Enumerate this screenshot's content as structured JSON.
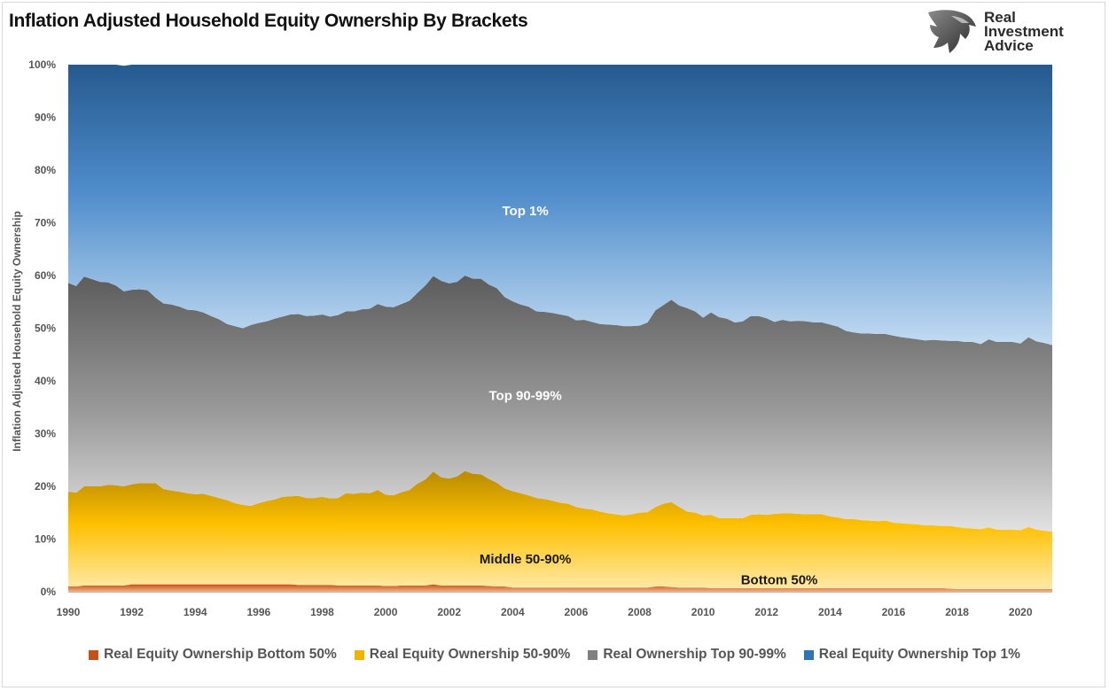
{
  "title": "Inflation Adjusted Household Equity Ownership By Brackets",
  "logo": {
    "lines": [
      "Real",
      "Investment",
      "Advice"
    ],
    "icon": "eagle-head-icon"
  },
  "chart_data": {
    "type": "area",
    "stacked": true,
    "title": "Inflation Adjusted Household Equity Ownership By Brackets",
    "ylabel": "Inflation Adjusted Household Equity Ownership",
    "xlabel": "",
    "ylim": [
      0,
      100
    ],
    "xlim": [
      1990,
      2021
    ],
    "y_ticks": [
      "0%",
      "10%",
      "20%",
      "30%",
      "40%",
      "50%",
      "60%",
      "70%",
      "80%",
      "90%",
      "100%"
    ],
    "x_ticks": [
      "1990",
      "1992",
      "1994",
      "1996",
      "1998",
      "2000",
      "2002",
      "2004",
      "2006",
      "2008",
      "2010",
      "2012",
      "2014",
      "2016",
      "2018",
      "2020"
    ],
    "legend_position": "bottom",
    "x": [
      1990.0,
      1990.25,
      1990.5,
      1990.75,
      1991.0,
      1991.25,
      1991.5,
      1991.75,
      1992.0,
      1992.25,
      1992.5,
      1992.75,
      1993.0,
      1993.25,
      1993.5,
      1993.75,
      1994.0,
      1994.25,
      1994.5,
      1994.75,
      1995.0,
      1995.25,
      1995.5,
      1995.75,
      1996.0,
      1996.25,
      1996.5,
      1996.75,
      1997.0,
      1997.25,
      1997.5,
      1997.75,
      1998.0,
      1998.25,
      1998.5,
      1998.75,
      1999.0,
      1999.25,
      1999.5,
      1999.75,
      2000.0,
      2000.25,
      2000.5,
      2000.75,
      2001.0,
      2001.25,
      2001.5,
      2001.75,
      2002.0,
      2002.25,
      2002.5,
      2002.75,
      2003.0,
      2003.25,
      2003.5,
      2003.75,
      2004.0,
      2004.25,
      2004.5,
      2004.75,
      2005.0,
      2005.25,
      2005.5,
      2005.75,
      2006.0,
      2006.25,
      2006.5,
      2006.75,
      2007.0,
      2007.25,
      2007.5,
      2007.75,
      2008.0,
      2008.25,
      2008.5,
      2008.75,
      2009.0,
      2009.25,
      2009.5,
      2009.75,
      2010.0,
      2010.25,
      2010.5,
      2010.75,
      2011.0,
      2011.25,
      2011.5,
      2011.75,
      2012.0,
      2012.25,
      2012.5,
      2012.75,
      2013.0,
      2013.25,
      2013.5,
      2013.75,
      2014.0,
      2014.25,
      2014.5,
      2014.75,
      2015.0,
      2015.25,
      2015.5,
      2015.75,
      2016.0,
      2016.25,
      2016.5,
      2016.75,
      2017.0,
      2017.25,
      2017.5,
      2017.75,
      2018.0,
      2018.25,
      2018.5,
      2018.75,
      2019.0,
      2019.25,
      2019.5,
      2019.75,
      2020.0,
      2020.25,
      2020.5,
      2020.75,
      2021.0
    ],
    "series": [
      {
        "name": "Real Equity Ownership Bottom 50%",
        "color": "#c5501b",
        "values": [
          1.0,
          1.0,
          1.2,
          1.2,
          1.2,
          1.2,
          1.2,
          1.2,
          1.4,
          1.4,
          1.4,
          1.4,
          1.4,
          1.4,
          1.4,
          1.4,
          1.4,
          1.4,
          1.4,
          1.4,
          1.4,
          1.4,
          1.4,
          1.4,
          1.4,
          1.4,
          1.4,
          1.4,
          1.4,
          1.3,
          1.3,
          1.3,
          1.3,
          1.3,
          1.2,
          1.2,
          1.2,
          1.2,
          1.2,
          1.2,
          1.1,
          1.1,
          1.2,
          1.2,
          1.2,
          1.2,
          1.4,
          1.2,
          1.2,
          1.2,
          1.2,
          1.2,
          1.2,
          1.1,
          1.0,
          1.0,
          0.8,
          0.8,
          0.8,
          0.8,
          0.8,
          0.8,
          0.8,
          0.8,
          0.8,
          0.8,
          0.8,
          0.8,
          0.8,
          0.8,
          0.8,
          0.8,
          0.8,
          0.8,
          1.0,
          1.0,
          0.9,
          0.8,
          0.8,
          0.8,
          0.8,
          0.7,
          0.7,
          0.7,
          0.7,
          0.7,
          0.7,
          0.7,
          0.7,
          0.7,
          0.7,
          0.7,
          0.7,
          0.7,
          0.7,
          0.7,
          0.7,
          0.7,
          0.7,
          0.7,
          0.7,
          0.7,
          0.7,
          0.7,
          0.7,
          0.7,
          0.7,
          0.7,
          0.7,
          0.7,
          0.7,
          0.6,
          0.5,
          0.5,
          0.5,
          0.5,
          0.5,
          0.5,
          0.5,
          0.5,
          0.5,
          0.5,
          0.5,
          0.5,
          0.5
        ]
      },
      {
        "name": "Real Equity Ownership 50-90%",
        "color": "#f0b400",
        "values": [
          18.0,
          17.8,
          18.8,
          18.8,
          18.8,
          19.1,
          19.0,
          18.8,
          19.0,
          19.2,
          19.2,
          19.2,
          18.1,
          17.8,
          17.6,
          17.3,
          17.1,
          17.2,
          16.8,
          16.4,
          16.0,
          15.4,
          15.1,
          14.9,
          15.4,
          15.8,
          16.1,
          16.6,
          16.7,
          16.9,
          16.5,
          16.5,
          16.7,
          16.4,
          16.6,
          17.5,
          17.4,
          17.6,
          17.5,
          18.1,
          17.3,
          17.2,
          17.7,
          18.1,
          19.3,
          20.1,
          21.4,
          20.5,
          20.3,
          20.7,
          21.7,
          21.2,
          21.1,
          20.3,
          19.7,
          18.6,
          18.3,
          17.9,
          17.5,
          17.0,
          16.8,
          16.5,
          16.1,
          15.9,
          15.3,
          15.0,
          14.8,
          14.4,
          14.1,
          13.9,
          13.7,
          13.9,
          14.2,
          14.3,
          15.1,
          15.7,
          16.1,
          15.3,
          14.4,
          14.2,
          13.7,
          13.9,
          13.3,
          13.3,
          13.3,
          13.3,
          13.9,
          14.0,
          13.9,
          14.1,
          14.2,
          14.2,
          14.1,
          14.0,
          14.0,
          14.0,
          13.6,
          13.4,
          13.1,
          13.1,
          12.9,
          12.8,
          12.7,
          12.8,
          12.4,
          12.3,
          12.2,
          12.1,
          11.9,
          11.9,
          11.8,
          11.9,
          11.8,
          11.6,
          11.5,
          11.4,
          11.7,
          11.3,
          11.3,
          11.3,
          11.2,
          11.8,
          11.3,
          11.1,
          10.9
        ]
      },
      {
        "name": "Real Ownership Top 90-99%",
        "color": "#7f7f7f",
        "values": [
          39.6,
          39.2,
          39.8,
          39.3,
          38.8,
          38.4,
          37.9,
          37.0,
          36.9,
          36.8,
          36.6,
          35.2,
          35.2,
          35.3,
          35.1,
          34.8,
          34.9,
          34.4,
          34.1,
          33.9,
          33.4,
          33.6,
          33.5,
          34.3,
          34.2,
          34.1,
          34.3,
          34.2,
          34.5,
          34.5,
          34.5,
          34.6,
          34.6,
          34.5,
          34.7,
          34.5,
          34.6,
          34.8,
          35.0,
          35.3,
          35.7,
          35.7,
          35.7,
          35.9,
          36.2,
          36.8,
          37.1,
          37.3,
          37.0,
          36.9,
          37.1,
          37.0,
          37.1,
          36.9,
          36.9,
          36.3,
          36.0,
          35.8,
          35.8,
          35.4,
          35.5,
          35.6,
          35.7,
          35.6,
          35.4,
          35.8,
          35.6,
          35.6,
          35.8,
          35.9,
          35.9,
          35.7,
          35.5,
          36.0,
          37.3,
          37.7,
          38.4,
          38.2,
          38.6,
          38.2,
          37.5,
          38.4,
          38.1,
          37.8,
          37.1,
          37.3,
          37.7,
          37.6,
          37.3,
          36.4,
          36.7,
          36.4,
          36.6,
          36.6,
          36.4,
          36.4,
          36.4,
          36.2,
          35.7,
          35.4,
          35.4,
          35.5,
          35.5,
          35.4,
          35.5,
          35.3,
          35.2,
          35.1,
          35.1,
          35.2,
          35.2,
          35.1,
          35.3,
          35.3,
          35.4,
          35.1,
          35.7,
          35.6,
          35.6,
          35.6,
          35.4,
          36.0,
          35.7,
          35.6,
          35.4
        ]
      },
      {
        "name": "Real Equity Ownership Top 1%",
        "color": "#2e75b6",
        "values": [
          41.4,
          42.0,
          40.2,
          40.7,
          41.2,
          41.3,
          41.9,
          42.8,
          42.7,
          42.6,
          42.8,
          44.2,
          45.3,
          45.5,
          45.9,
          46.5,
          46.6,
          47.0,
          47.7,
          48.3,
          49.2,
          49.6,
          50.0,
          49.4,
          49.0,
          48.7,
          48.2,
          47.8,
          47.4,
          47.3,
          47.7,
          47.6,
          47.4,
          47.8,
          47.5,
          46.8,
          46.8,
          46.4,
          46.3,
          45.4,
          45.9,
          46.0,
          45.4,
          44.8,
          43.3,
          41.9,
          40.1,
          41.0,
          41.5,
          41.2,
          40.0,
          40.6,
          40.6,
          41.7,
          42.4,
          44.1,
          44.9,
          45.5,
          45.9,
          46.8,
          46.9,
          47.1,
          47.4,
          47.7,
          48.5,
          48.4,
          48.8,
          49.2,
          49.3,
          49.4,
          49.6,
          49.6,
          49.5,
          48.9,
          46.6,
          45.6,
          44.6,
          45.7,
          46.2,
          46.8,
          48.0,
          47.0,
          47.9,
          48.2,
          48.9,
          48.7,
          47.7,
          47.7,
          48.1,
          48.8,
          48.4,
          48.7,
          48.6,
          48.7,
          48.9,
          48.9,
          49.3,
          49.7,
          50.5,
          50.8,
          51.0,
          51.0,
          51.1,
          51.1,
          51.4,
          51.7,
          51.9,
          52.1,
          52.3,
          52.2,
          52.3,
          52.4,
          52.4,
          52.6,
          52.6,
          53.0,
          52.1,
          52.6,
          52.6,
          52.6,
          52.9,
          51.7,
          52.5,
          52.8,
          53.2
        ]
      }
    ],
    "annotations": [
      {
        "text": "Top 1%",
        "x": 2004.4,
        "y": 72.3,
        "color": "#ffffff"
      },
      {
        "text": "Top 90-99%",
        "x": 2004.4,
        "y": 37.2,
        "color": "#ffffff"
      },
      {
        "text": "Middle 50-90%",
        "x": 2004.4,
        "y": 6.2,
        "color": "#1a1a1a"
      },
      {
        "text": "Bottom 50%",
        "x": 2012.4,
        "y": 2.3,
        "color": "#1a1a1a"
      }
    ]
  }
}
